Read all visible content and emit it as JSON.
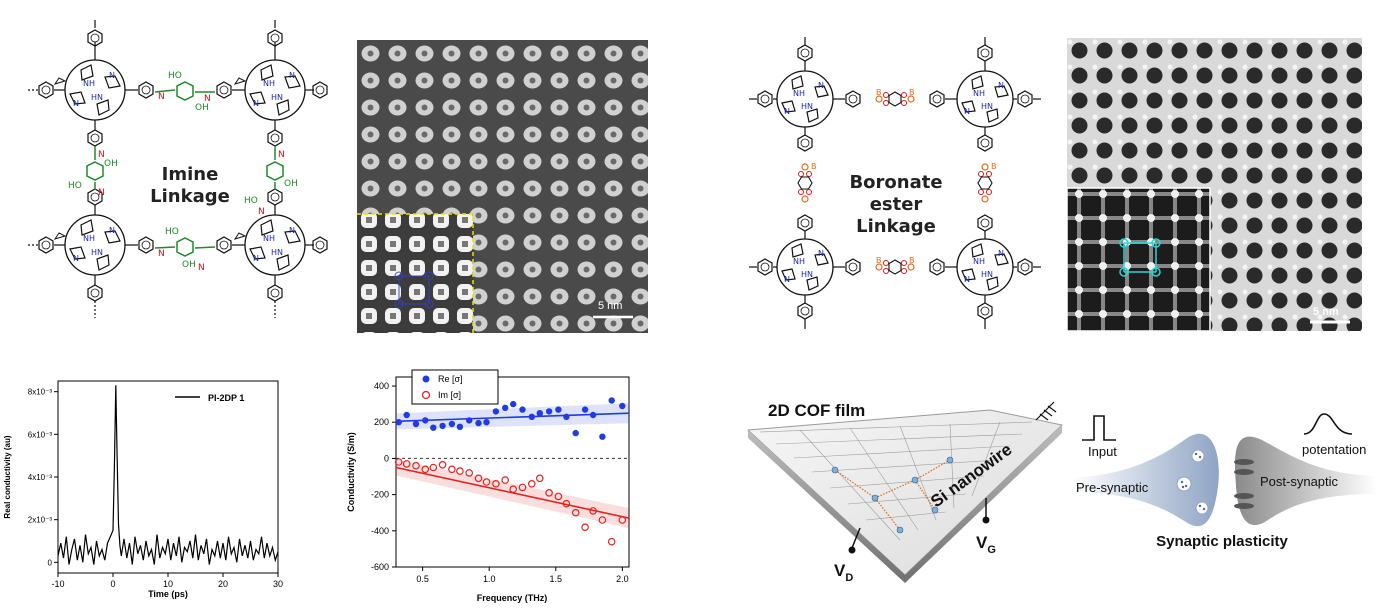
{
  "panel_a": {
    "label_line1": "Imine",
    "label_line2": "Linkage",
    "atoms": {
      "nh": "NH",
      "hn": "HN",
      "n": "N",
      "ho": "HO",
      "oh": "OH"
    }
  },
  "panel_b": {
    "scale_label": "5 nm"
  },
  "panel_c": {
    "label_line1": "Boronate ester",
    "label_line2": "Linkage",
    "atoms": {
      "b": "B",
      "o": "O",
      "nh": "NH",
      "hn": "HN",
      "n": "N"
    }
  },
  "panel_d": {
    "scale_label": "5 nm"
  },
  "panel_e": {
    "chart_data": {
      "type": "line",
      "xlabel": "Time (ps)",
      "ylabel": "Real conductivity (au)",
      "legend": [
        "PI-2DP 1"
      ],
      "xlim": [
        -10,
        30
      ],
      "ylim": [
        -0.0005,
        0.0085
      ],
      "xticks": [
        "-10",
        "0",
        "10",
        "20",
        "30"
      ],
      "yticks": [
        "0",
        "2x10⁻³",
        "4x10⁻³",
        "6x10⁻³",
        "8x10⁻³"
      ],
      "ytick_values": [
        0,
        0.002,
        0.004,
        0.006,
        0.008
      ],
      "series": [
        {
          "name": "PI-2DP 1",
          "x": [
            -10,
            -9.5,
            -9,
            -8.5,
            -8,
            -7.5,
            -7,
            -6.5,
            -6,
            -5.5,
            -5,
            -4.5,
            -4,
            -3.5,
            -3,
            -2.5,
            -2,
            -1.5,
            -1,
            -0.5,
            0,
            0.25,
            0.5,
            0.75,
            1,
            1.25,
            1.5,
            2,
            2.5,
            3,
            3.5,
            4,
            4.5,
            5,
            5.5,
            6,
            6.5,
            7,
            7.5,
            8,
            8.5,
            9,
            9.5,
            10,
            10.5,
            11,
            11.5,
            12,
            12.5,
            13,
            13.5,
            14,
            14.5,
            15,
            15.5,
            16,
            16.5,
            17,
            17.5,
            18,
            18.5,
            19,
            19.5,
            20,
            20.5,
            21,
            21.5,
            22,
            22.5,
            23,
            23.5,
            24,
            24.5,
            25,
            25.5,
            26,
            26.5,
            27,
            27.5,
            28,
            28.5,
            29,
            29.5,
            30
          ],
          "y": [
            0.0003,
            0.0009,
            0.0002,
            0.0012,
            -0.0001,
            0.0006,
            0.0011,
            0.0001,
            0.0008,
            0.0,
            0.0013,
            0.0004,
            0.0007,
            -0.0001,
            0.001,
            0.0003,
            0.0006,
            0.0001,
            0.0009,
            0.0012,
            0.0015,
            0.0045,
            0.0083,
            0.005,
            0.0018,
            0.0008,
            0.0003,
            0.0011,
            0.0002,
            0.0009,
            -0.0001,
            0.0012,
            0.0004,
            0.0008,
            0.0001,
            0.001,
            0.0003,
            0.0006,
            -0.0001,
            0.0013,
            0.0002,
            0.0007,
            0.0004,
            0.0011,
            0.0001,
            0.0009,
            0.0003,
            0.0012,
            0.0,
            0.0007,
            0.0005,
            0.001,
            0.0002,
            0.0013,
            0.0001,
            0.0008,
            0.0004,
            0.0011,
            -0.0001,
            0.0006,
            0.0003,
            0.001,
            0.0002,
            0.0009,
            0.0001,
            0.0012,
            0.0004,
            0.0007,
            0.0,
            0.0011,
            0.0003,
            0.0008,
            0.0002,
            0.001,
            0.0001,
            0.0006,
            0.0004,
            0.0012,
            0.0002,
            0.0009,
            0.0003,
            0.0007,
            0.0001,
            0.0005
          ]
        }
      ]
    }
  },
  "panel_f": {
    "chart_data": {
      "type": "scatter",
      "xlabel": "Frequency (THz)",
      "ylabel": "Conductivity (S/m)",
      "xlim": [
        0.3,
        2.05
      ],
      "ylim": [
        -600,
        450
      ],
      "xticks": [
        "0.5",
        "1.0",
        "1.5",
        "2.0"
      ],
      "xtick_values": [
        0.5,
        1.0,
        1.5,
        2.0
      ],
      "yticks": [
        "-600",
        "-400",
        "-200",
        "0",
        "200",
        "400"
      ],
      "ytick_values": [
        -600,
        -400,
        -200,
        0,
        200,
        400
      ],
      "legend": [
        "Re [σ]",
        "Im [σ]"
      ],
      "series": [
        {
          "name": "Re [σ]",
          "color": "#1f3de0",
          "x": [
            0.32,
            0.38,
            0.45,
            0.52,
            0.58,
            0.65,
            0.72,
            0.78,
            0.85,
            0.92,
            0.98,
            1.05,
            1.12,
            1.18,
            1.25,
            1.32,
            1.38,
            1.45,
            1.52,
            1.58,
            1.65,
            1.72,
            1.78,
            1.85,
            1.92,
            2.0
          ],
          "y": [
            200,
            240,
            190,
            210,
            170,
            180,
            190,
            175,
            210,
            195,
            200,
            260,
            280,
            300,
            270,
            230,
            250,
            260,
            270,
            230,
            140,
            270,
            240,
            120,
            320,
            290
          ],
          "fit": [
            205,
            250
          ]
        },
        {
          "name": "Im [σ]",
          "color": "#e0231f",
          "x": [
            0.32,
            0.38,
            0.45,
            0.52,
            0.58,
            0.65,
            0.72,
            0.78,
            0.85,
            0.92,
            0.98,
            1.05,
            1.12,
            1.18,
            1.25,
            1.32,
            1.38,
            1.45,
            1.52,
            1.58,
            1.65,
            1.72,
            1.78,
            1.85,
            1.92,
            2.0
          ],
          "y": [
            -20,
            -30,
            -40,
            -60,
            -50,
            -35,
            -60,
            -70,
            -80,
            -110,
            -130,
            -140,
            -120,
            -170,
            -160,
            -140,
            -110,
            -190,
            -210,
            -250,
            -300,
            -380,
            -290,
            -340,
            -460,
            -340
          ],
          "fit": [
            -50,
            -330
          ]
        }
      ]
    }
  },
  "panel_g": {
    "film_label": "2D COF film",
    "wire_label": "Si nanowire",
    "vd_label": "V",
    "vd_sub": "D",
    "vg_label": "V",
    "vg_sub": "G"
  },
  "panel_h": {
    "input_label": "Input",
    "potentiation_label": "potentation",
    "pre_label": "Pre-synaptic",
    "post_label": "Post-synaptic",
    "plasticity_label": "Synaptic plasticity"
  }
}
